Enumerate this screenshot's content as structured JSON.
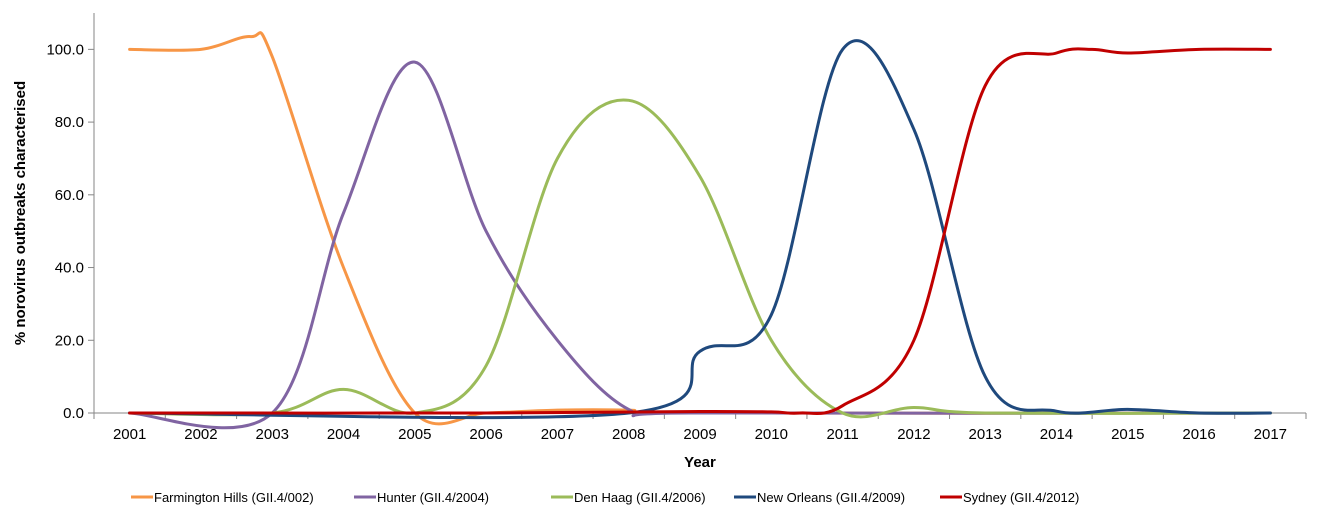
{
  "chart_data": {
    "type": "line",
    "xlabel": "Year",
    "ylabel": "% norovirus outbreaks characterised",
    "categories": [
      "2001",
      "2002",
      "2003",
      "2004",
      "2005",
      "2006",
      "2007",
      "2008",
      "2009",
      "2010",
      "2011",
      "2012",
      "2013",
      "2014",
      "2015",
      "2016",
      "2017"
    ],
    "y_ticks": [
      "0.0",
      "20.0",
      "40.0",
      "60.0",
      "80.0",
      "100.0"
    ],
    "ylim": [
      0,
      110
    ],
    "grid": false,
    "legend_position": "bottom",
    "series": [
      {
        "name": "Farmington Hills (GII.4/002)",
        "color": "#F79646",
        "points": [
          [
            2001,
            100
          ],
          [
            2002,
            100
          ],
          [
            2002.7,
            103.5
          ],
          [
            2003,
            98
          ],
          [
            2004,
            40
          ],
          [
            2005,
            0
          ],
          [
            2006,
            0
          ],
          [
            2007,
            0.8
          ],
          [
            2008,
            0.8
          ],
          [
            2009,
            0
          ],
          [
            2017,
            0
          ]
        ]
      },
      {
        "name": "Hunter (GII.4/2004)",
        "color": "#8064A2",
        "points": [
          [
            2001,
            0
          ],
          [
            2003,
            0
          ],
          [
            2004,
            55
          ],
          [
            2005,
            96.5
          ],
          [
            2006,
            50
          ],
          [
            2007,
            20
          ],
          [
            2008,
            1
          ],
          [
            2009,
            0
          ],
          [
            2017,
            0
          ]
        ]
      },
      {
        "name": "Den Haag (GII.4/2006)",
        "color": "#9BBB59",
        "points": [
          [
            2001,
            0
          ],
          [
            2003,
            0
          ],
          [
            2004,
            6.5
          ],
          [
            2005,
            0
          ],
          [
            2006,
            13
          ],
          [
            2007,
            70
          ],
          [
            2008,
            86
          ],
          [
            2009,
            65
          ],
          [
            2010,
            20
          ],
          [
            2011,
            0
          ],
          [
            2012,
            1.5
          ],
          [
            2013,
            0
          ],
          [
            2017,
            0
          ]
        ]
      },
      {
        "name": "New Orleans (GII.4/2009)",
        "color": "#1F497D",
        "points": [
          [
            2001,
            0
          ],
          [
            2008,
            0
          ],
          [
            2009,
            17
          ],
          [
            2010,
            27
          ],
          [
            2011,
            100
          ],
          [
            2012,
            78
          ],
          [
            2013,
            10
          ],
          [
            2014,
            0.5
          ],
          [
            2015,
            1
          ],
          [
            2016,
            0
          ],
          [
            2017,
            0
          ]
        ]
      },
      {
        "name": "Sydney (GII.4/2012)",
        "color": "#C00000",
        "points": [
          [
            2001,
            0
          ],
          [
            2006,
            0
          ],
          [
            2009,
            0.4
          ],
          [
            2010,
            0.3
          ],
          [
            2010.4,
            0
          ],
          [
            2011,
            2
          ],
          [
            2012,
            20
          ],
          [
            2013,
            90
          ],
          [
            2014,
            99
          ],
          [
            2014.5,
            100
          ],
          [
            2015,
            99
          ],
          [
            2016,
            100
          ],
          [
            2017,
            100
          ]
        ]
      }
    ]
  }
}
